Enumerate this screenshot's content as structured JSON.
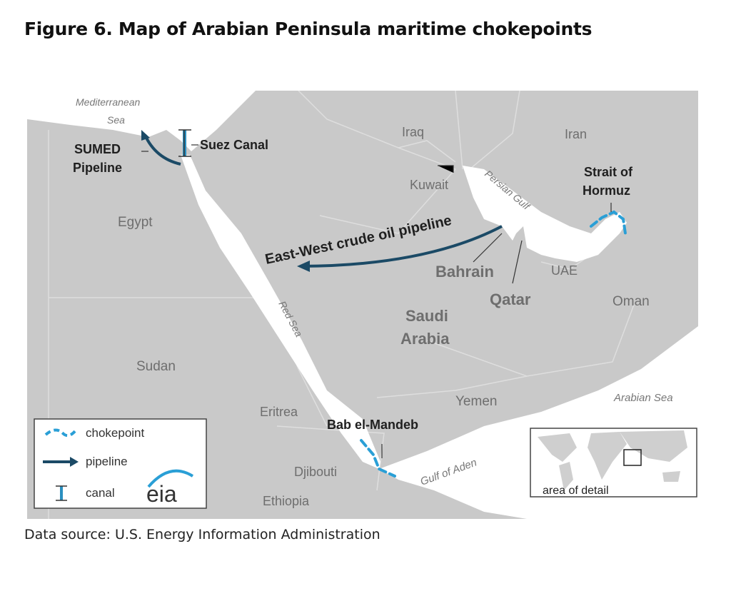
{
  "title": "Figure 6. Map of Arabian Peninsula maritime chokepoints",
  "source": "Data source: U.S. Energy Information Administration",
  "colors": {
    "land": "#c9c9c9",
    "water": "#ffffff",
    "pipeline": "#1b4a66",
    "chokepoint": "#2a9fd6",
    "canal": "#2a8fc0"
  },
  "seas": {
    "mediterranean_1": "Mediterranean",
    "mediterranean_2": "Sea",
    "red_sea": "Red Sea",
    "persian_gulf": "Persian Gulf",
    "gulf_of_aden": "Gulf of Aden",
    "arabian_sea": "Arabian Sea"
  },
  "countries": {
    "egypt": "Egypt",
    "iraq": "Iraq",
    "iran": "Iran",
    "kuwait": "Kuwait",
    "bahrain": "Bahrain",
    "qatar": "Qatar",
    "uae": "UAE",
    "oman": "Oman",
    "saudi_1": "Saudi",
    "saudi_2": "Arabia",
    "sudan": "Sudan",
    "eritrea": "Eritrea",
    "yemen": "Yemen",
    "djibouti": "Djibouti",
    "ethiopia": "Ethiopia"
  },
  "features": {
    "sumed_1": "SUMED",
    "sumed_2": "Pipeline",
    "suez": "Suez Canal",
    "pipeline": "East-West crude oil pipeline",
    "hormuz_1": "Strait of",
    "hormuz_2": "Hormuz",
    "bab": "Bab el-Mandeb"
  },
  "legend": {
    "chokepoint": "chokepoint",
    "pipeline": "pipeline",
    "canal": "canal",
    "logo": "eia"
  },
  "inset": {
    "label": "area of detail"
  }
}
